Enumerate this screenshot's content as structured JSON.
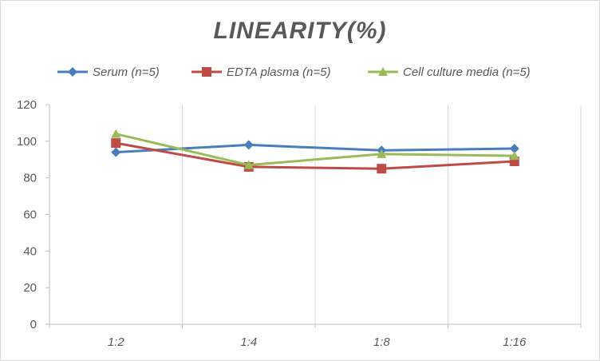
{
  "chart_data": {
    "type": "line",
    "title": "LINEARITY(%)",
    "categories": [
      "1:2",
      "1:4",
      "1:8",
      "1:16"
    ],
    "ylim": [
      0,
      120
    ],
    "yticks": [
      0,
      20,
      40,
      60,
      80,
      100,
      120
    ],
    "grid": "vertical",
    "legend_position": "top",
    "series": [
      {
        "name": "Serum (n=5)",
        "values": [
          94,
          98,
          95,
          96
        ],
        "color": "#4a7ebb",
        "marker": "diamond"
      },
      {
        "name": "EDTA plasma (n=5)",
        "values": [
          99,
          86,
          85,
          89
        ],
        "color": "#be4b48",
        "marker": "square"
      },
      {
        "name": "Cell culture media (n=5)",
        "values": [
          104,
          87,
          93,
          92
        ],
        "color": "#9bbb59",
        "marker": "triangle"
      }
    ]
  }
}
